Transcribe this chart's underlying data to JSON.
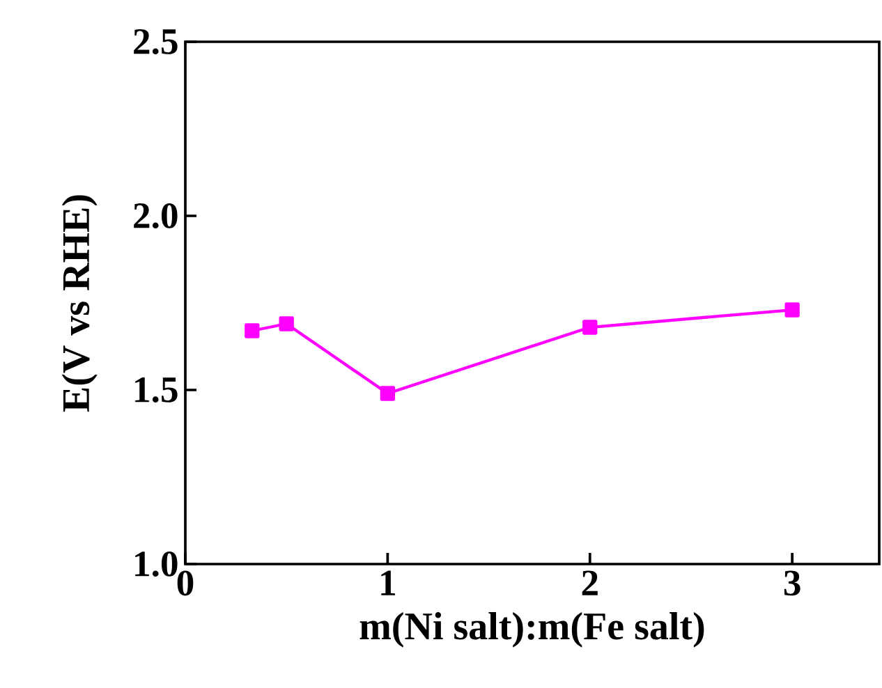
{
  "chart_data": {
    "type": "line",
    "xlabel": "m(Ni salt):m(Fe salt)",
    "ylabel": "E(V vs RHE)",
    "x": [
      0.33,
      0.5,
      1,
      2,
      3
    ],
    "series": [
      {
        "color": "#ff00ff",
        "values": [
          1.67,
          1.69,
          1.49,
          1.68,
          1.73
        ]
      }
    ],
    "marker": "square",
    "line_style": "solid",
    "grid": false,
    "xlim": [
      0,
      3.43
    ],
    "ylim": [
      1.0,
      2.5
    ],
    "xticks": [
      0,
      1,
      2,
      3
    ],
    "yticks": [
      {
        "value": 1.0,
        "label": "1.0"
      },
      1.5,
      {
        "value": 2.0,
        "label": "2.0"
      },
      2.5
    ]
  }
}
